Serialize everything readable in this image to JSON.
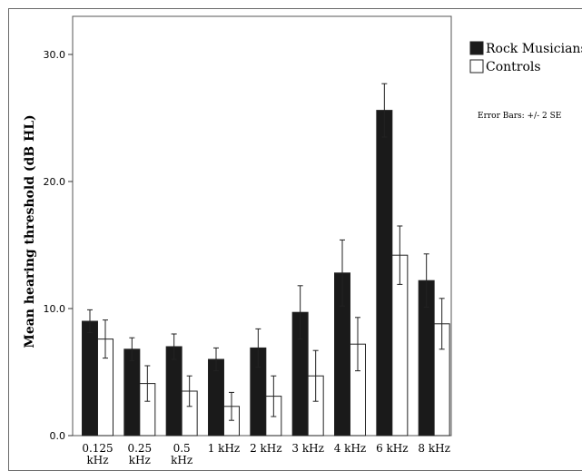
{
  "chart_data": {
    "type": "bar",
    "title": "",
    "xlabel": "",
    "ylabel": "Mean hearing threshold (dB HL)",
    "ylim": [
      0,
      33
    ],
    "yticks": [
      "0.0",
      "10.0",
      "20.0",
      "30.0"
    ],
    "ytick_values": [
      0,
      10,
      20,
      30
    ],
    "categories": [
      "0.125 kHz",
      "0.25 kHz",
      "0.5 kHz",
      "1 kHz",
      "2 kHz",
      "3 kHz",
      "4 kHz",
      "6 kHz",
      "8 kHz"
    ],
    "series": [
      {
        "name": "Rock Musicians",
        "color": "#1a1a1a",
        "values": [
          9.0,
          6.8,
          7.0,
          6.0,
          6.9,
          9.7,
          12.8,
          25.6,
          12.2
        ],
        "error": [
          0.9,
          0.9,
          1.0,
          0.9,
          1.5,
          2.1,
          2.6,
          2.1,
          2.1
        ]
      },
      {
        "name": "Controls",
        "color": "#ffffff",
        "values": [
          7.6,
          4.1,
          3.5,
          2.3,
          3.1,
          4.7,
          7.2,
          14.2,
          8.8
        ],
        "error": [
          1.5,
          1.4,
          1.2,
          1.1,
          1.6,
          2.0,
          2.1,
          2.3,
          2.0
        ]
      }
    ],
    "legend_position": "top-right, outside plot",
    "note": "Error Bars: +/- 2 SE",
    "grid": false
  }
}
